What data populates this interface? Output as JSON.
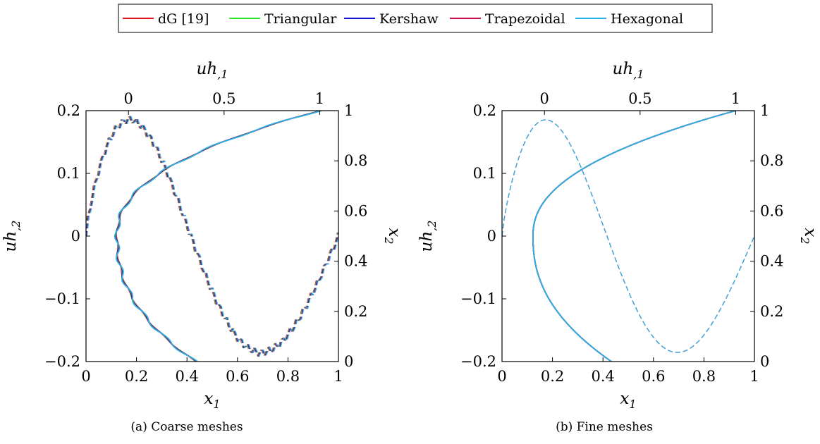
{
  "legend": [
    {
      "label": "dG [19]",
      "color": "#e8121c"
    },
    {
      "label": "Triangular",
      "color": "#2ee82e"
    },
    {
      "label": "Kershaw",
      "color": "#1010d8"
    },
    {
      "label": "Trapezoidal",
      "color": "#c8104e"
    },
    {
      "label": "Hexagonal",
      "color": "#28b2e8"
    }
  ],
  "chart_data": [
    {
      "type": "line",
      "caption": "(a) Coarse meshes",
      "x1_label": "x1",
      "x2_label": "x2",
      "u1_label": "uh,1",
      "u2_label": "uh,2",
      "x1_ticks": [
        "0",
        "0.2",
        "0.4",
        "0.6",
        "0.8",
        "1"
      ],
      "x2_ticks": [
        "0",
        "0.2",
        "0.4",
        "0.6",
        "0.8",
        "1"
      ],
      "u1_ticks": [
        "0",
        "0.5",
        "1"
      ],
      "u2_ticks": [
        "−0.2",
        "−0.1",
        "0",
        "0.1",
        "0.2"
      ],
      "x1_range": [
        0,
        1
      ],
      "x2_range": [
        0,
        1
      ],
      "u1_range": [
        -0.222,
        1.098
      ],
      "u2_range": [
        -0.2,
        0.2
      ],
      "coarse": true
    },
    {
      "type": "line",
      "caption": "(b) Fine meshes",
      "x1_label": "x1",
      "x2_label": "x2",
      "u1_label": "uh,1",
      "u2_label": "uh,2",
      "x1_ticks": [
        "0",
        "0.2",
        "0.4",
        "0.6",
        "0.8",
        "1"
      ],
      "x2_ticks": [
        "0",
        "0.2",
        "0.4",
        "0.6",
        "0.8",
        "1"
      ],
      "u1_ticks": [
        "0",
        "0.5",
        "1"
      ],
      "u2_ticks": [
        "−0.2",
        "−0.1",
        "0",
        "0.1",
        "0.2"
      ],
      "x1_range": [
        0,
        1
      ],
      "x2_range": [
        0,
        1
      ],
      "u1_range": [
        -0.222,
        1.098
      ],
      "u2_range": [
        -0.2,
        0.2
      ],
      "coarse": false
    }
  ]
}
